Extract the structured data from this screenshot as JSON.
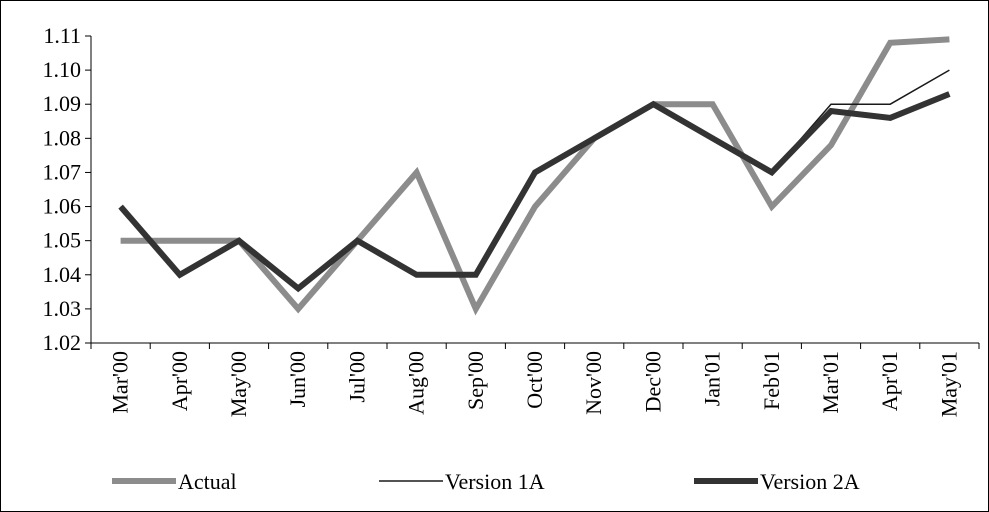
{
  "chart_data": {
    "type": "line",
    "title": "",
    "xlabel": "",
    "ylabel": "",
    "categories": [
      "Mar'00",
      "Apr'00",
      "May'00",
      "Jun'00",
      "Jul'00",
      "Aug'00",
      "Sep'00",
      "Oct'00",
      "Nov'00",
      "Dec'00",
      "Jan'01",
      "Feb'01",
      "Mar'01",
      "Apr'01",
      "May'01"
    ],
    "ylim": [
      1.02,
      1.11
    ],
    "yticks": [
      "1.02",
      "1.03",
      "1.04",
      "1.05",
      "1.06",
      "1.07",
      "1.08",
      "1.09",
      "1.10",
      "1.11"
    ],
    "grid": false,
    "legend_position": "bottom",
    "series": [
      {
        "name": "Actual",
        "color": "#8c8c8c",
        "style": "thick",
        "values": [
          1.05,
          1.05,
          1.05,
          1.03,
          1.05,
          1.07,
          1.03,
          1.06,
          1.08,
          1.09,
          1.09,
          1.06,
          1.078,
          1.108,
          1.109
        ]
      },
      {
        "name": "Version 1A",
        "color": "#1a1a1a",
        "style": "thin",
        "values": [
          1.06,
          1.04,
          1.05,
          1.036,
          1.05,
          1.04,
          1.04,
          1.07,
          1.08,
          1.09,
          1.08,
          1.07,
          1.09,
          1.09,
          1.1
        ]
      },
      {
        "name": "Version 2A",
        "color": "#333333",
        "style": "thick",
        "values": [
          1.06,
          1.04,
          1.05,
          1.036,
          1.05,
          1.04,
          1.04,
          1.07,
          1.08,
          1.09,
          1.08,
          1.07,
          1.088,
          1.086,
          1.093
        ]
      }
    ]
  }
}
